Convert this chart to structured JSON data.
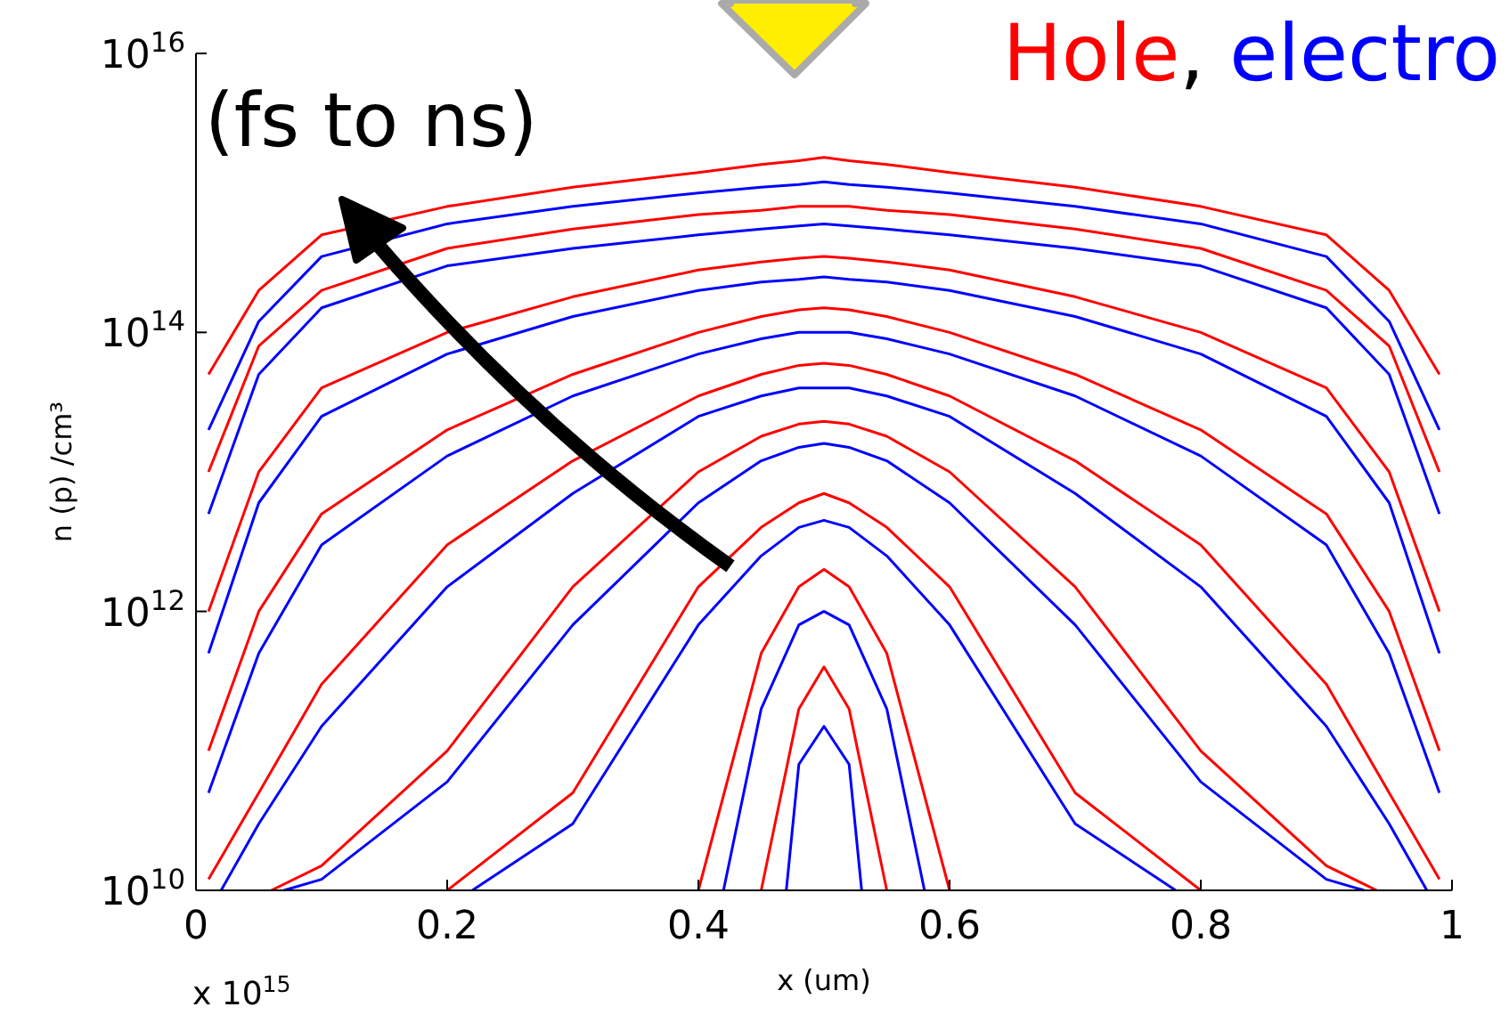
{
  "chart_data": {
    "type": "line",
    "title": "Hole, electro",
    "xlabel": "x (um)",
    "ylabel": "n (p) /cm³",
    "log": "y",
    "line_style": "solid",
    "marker": "none",
    "grid": false,
    "annotations": [
      "(fs to ns)",
      "x 10$^{15}$"
    ],
    "xlim": [
      0,
      1
    ],
    "xticks": [
      0,
      0.2,
      0.4,
      0.6,
      0.8,
      1
    ],
    "ylim": [
      10000000000.0,
      1e+16
    ],
    "yticks": [
      {
        "value": 10000000000.0,
        "label": "10$^{10}$"
      },
      {
        "value": 1000000000000.0,
        "label": "10$^{12}$"
      },
      {
        "value": 100000000000000.0,
        "label": "10$^{14}$"
      },
      {
        "value": 1e+16,
        "label": "10$^{16}$"
      }
    ],
    "series": [
      {
        "color": "#ff0000",
        "x": [
          0.01,
          0.05,
          0.1,
          0.2,
          0.3,
          0.4,
          0.45,
          0.48,
          0.5,
          0.52,
          0.55,
          0.6,
          0.7,
          0.8,
          0.9,
          0.95,
          0.99
        ],
        "values": [
          50000000000000.0,
          200000000000000.0,
          500000000000000.0,
          800000000000000.0,
          1100000000000000.0,
          1400000000000000.0,
          1600000000000000.0,
          1700000000000000.0,
          1800000000000000.0,
          1700000000000000.0,
          1600000000000000.0,
          1400000000000000.0,
          1100000000000000.0,
          800000000000000.0,
          500000000000000.0,
          200000000000000.0,
          50000000000000.0
        ]
      },
      {
        "color": "#0000ff",
        "x": [
          0.01,
          0.05,
          0.1,
          0.2,
          0.3,
          0.4,
          0.45,
          0.48,
          0.5,
          0.52,
          0.55,
          0.6,
          0.7,
          0.8,
          0.9,
          0.95,
          0.99
        ],
        "values": [
          20000000000000.0,
          120000000000000.0,
          350000000000000.0,
          600000000000000.0,
          800000000000000.0,
          1000000000000000.0,
          1100000000000000.0,
          1150000000000000.0,
          1200000000000000.0,
          1150000000000000.0,
          1100000000000000.0,
          1000000000000000.0,
          800000000000000.0,
          600000000000000.0,
          350000000000000.0,
          120000000000000.0,
          20000000000000.0
        ]
      },
      {
        "color": "#ff0000",
        "x": [
          0.01,
          0.05,
          0.1,
          0.2,
          0.3,
          0.4,
          0.45,
          0.48,
          0.5,
          0.52,
          0.55,
          0.6,
          0.7,
          0.8,
          0.9,
          0.95,
          0.99
        ],
        "values": [
          10000000000000.0,
          80000000000000.0,
          200000000000000.0,
          400000000000000.0,
          550000000000000.0,
          700000000000000.0,
          750000000000000.0,
          800000000000000.0,
          800000000000000.0,
          800000000000000.0,
          750000000000000.0,
          700000000000000.0,
          550000000000000.0,
          400000000000000.0,
          200000000000000.0,
          80000000000000.0,
          10000000000000.0
        ]
      },
      {
        "color": "#0000ff",
        "x": [
          0.01,
          0.05,
          0.1,
          0.2,
          0.3,
          0.4,
          0.45,
          0.48,
          0.5,
          0.52,
          0.55,
          0.6,
          0.7,
          0.8,
          0.9,
          0.95,
          0.99
        ],
        "values": [
          5000000000000.0,
          50000000000000.0,
          150000000000000.0,
          300000000000000.0,
          400000000000000.0,
          500000000000000.0,
          550000000000000.0,
          580000000000000.0,
          600000000000000.0,
          580000000000000.0,
          550000000000000.0,
          500000000000000.0,
          400000000000000.0,
          300000000000000.0,
          150000000000000.0,
          50000000000000.0,
          5000000000000.0
        ]
      },
      {
        "color": "#ff0000",
        "x": [
          0.01,
          0.05,
          0.1,
          0.2,
          0.3,
          0.4,
          0.45,
          0.48,
          0.5,
          0.52,
          0.55,
          0.6,
          0.7,
          0.8,
          0.9,
          0.95,
          0.99
        ],
        "values": [
          1000000000000.0,
          10000000000000.0,
          40000000000000.0,
          100000000000000.0,
          180000000000000.0,
          280000000000000.0,
          320000000000000.0,
          340000000000000.0,
          350000000000000.0,
          340000000000000.0,
          320000000000000.0,
          280000000000000.0,
          180000000000000.0,
          100000000000000.0,
          40000000000000.0,
          10000000000000.0,
          1000000000000.0
        ]
      },
      {
        "color": "#0000ff",
        "x": [
          0.01,
          0.05,
          0.1,
          0.2,
          0.3,
          0.4,
          0.45,
          0.48,
          0.5,
          0.52,
          0.55,
          0.6,
          0.7,
          0.8,
          0.9,
          0.95,
          0.99
        ],
        "values": [
          500000000000.0,
          6000000000000.0,
          25000000000000.0,
          70000000000000.0,
          130000000000000.0,
          200000000000000.0,
          230000000000000.0,
          240000000000000.0,
          250000000000000.0,
          240000000000000.0,
          230000000000000.0,
          200000000000000.0,
          130000000000000.0,
          70000000000000.0,
          25000000000000.0,
          6000000000000.0,
          500000000000.0
        ]
      },
      {
        "color": "#ff0000",
        "x": [
          0.01,
          0.05,
          0.1,
          0.2,
          0.3,
          0.4,
          0.45,
          0.48,
          0.5,
          0.52,
          0.55,
          0.6,
          0.7,
          0.8,
          0.9,
          0.95,
          0.99
        ],
        "values": [
          100000000000.0,
          1000000000000.0,
          5000000000000.0,
          20000000000000.0,
          50000000000000.0,
          100000000000000.0,
          130000000000000.0,
          145000000000000.0,
          150000000000000.0,
          145000000000000.0,
          130000000000000.0,
          100000000000000.0,
          50000000000000.0,
          20000000000000.0,
          5000000000000.0,
          1000000000000.0,
          100000000000.0
        ]
      },
      {
        "color": "#0000ff",
        "x": [
          0.01,
          0.05,
          0.1,
          0.2,
          0.3,
          0.4,
          0.45,
          0.48,
          0.5,
          0.52,
          0.55,
          0.6,
          0.7,
          0.8,
          0.9,
          0.95,
          0.99
        ],
        "values": [
          50000000000.0,
          500000000000.0,
          3000000000000.0,
          13000000000000.0,
          35000000000000.0,
          70000000000000.0,
          90000000000000.0,
          100000000000000.0,
          100000000000000.0,
          100000000000000.0,
          90000000000000.0,
          70000000000000.0,
          35000000000000.0,
          13000000000000.0,
          3000000000000.0,
          500000000000.0,
          50000000000.0
        ]
      },
      {
        "color": "#ff0000",
        "x": [
          0.01,
          0.05,
          0.1,
          0.2,
          0.3,
          0.4,
          0.45,
          0.48,
          0.5,
          0.52,
          0.55,
          0.6,
          0.7,
          0.8,
          0.9,
          0.95,
          0.99
        ],
        "values": [
          12000000000.0,
          50000000000.0,
          300000000000.0,
          3000000000000.0,
          12000000000000.0,
          35000000000000.0,
          50000000000000.0,
          58000000000000.0,
          60000000000000.0,
          58000000000000.0,
          50000000000000.0,
          35000000000000.0,
          12000000000000.0,
          3000000000000.0,
          300000000000.0,
          50000000000.0,
          12000000000.0
        ]
      },
      {
        "color": "#0000ff",
        "x": [
          0.02,
          0.05,
          0.1,
          0.2,
          0.3,
          0.4,
          0.45,
          0.48,
          0.5,
          0.52,
          0.55,
          0.6,
          0.7,
          0.8,
          0.9,
          0.95,
          0.98
        ],
        "values": [
          10000000000.0,
          30000000000.0,
          150000000000.0,
          1500000000000.0,
          7000000000000.0,
          25000000000000.0,
          35000000000000.0,
          40000000000000.0,
          40000000000000.0,
          40000000000000.0,
          35000000000000.0,
          25000000000000.0,
          7000000000000.0,
          1500000000000.0,
          150000000000.0,
          30000000000.0,
          10000000000.0
        ]
      },
      {
        "color": "#ff0000",
        "x": [
          0.06,
          0.1,
          0.2,
          0.3,
          0.4,
          0.45,
          0.48,
          0.5,
          0.52,
          0.55,
          0.6,
          0.7,
          0.8,
          0.9,
          0.94
        ],
        "values": [
          10000000000.0,
          15000000000.0,
          100000000000.0,
          1500000000000.0,
          10000000000000.0,
          18000000000000.0,
          22000000000000.0,
          23000000000000.0,
          22000000000000.0,
          18000000000000.0,
          10000000000000.0,
          1500000000000.0,
          100000000000.0,
          15000000000.0,
          10000000000.0
        ]
      },
      {
        "color": "#0000ff",
        "x": [
          0.07,
          0.1,
          0.2,
          0.3,
          0.4,
          0.45,
          0.48,
          0.5,
          0.52,
          0.55,
          0.6,
          0.7,
          0.8,
          0.9,
          0.93
        ],
        "values": [
          10000000000.0,
          12000000000.0,
          60000000000.0,
          800000000000.0,
          6000000000000.0,
          12000000000000.0,
          15000000000000.0,
          16000000000000.0,
          15000000000000.0,
          12000000000000.0,
          6000000000000.0,
          800000000000.0,
          60000000000.0,
          12000000000.0,
          10000000000.0
        ]
      },
      {
        "color": "#ff0000",
        "x": [
          0.2,
          0.3,
          0.4,
          0.45,
          0.48,
          0.5,
          0.52,
          0.55,
          0.6,
          0.7,
          0.8
        ],
        "values": [
          10000000000.0,
          50000000000.0,
          1500000000000.0,
          4000000000000.0,
          6000000000000.0,
          7000000000000.0,
          6000000000000.0,
          4000000000000.0,
          1500000000000.0,
          50000000000.0,
          10000000000.0
        ]
      },
      {
        "color": "#0000ff",
        "x": [
          0.22,
          0.3,
          0.4,
          0.45,
          0.48,
          0.5,
          0.52,
          0.55,
          0.6,
          0.7,
          0.78
        ],
        "values": [
          10000000000.0,
          30000000000.0,
          800000000000.0,
          2500000000000.0,
          4000000000000.0,
          4500000000000.0,
          4000000000000.0,
          2500000000000.0,
          800000000000.0,
          30000000000.0,
          10000000000.0
        ]
      },
      {
        "color": "#ff0000",
        "x": [
          0.4,
          0.45,
          0.48,
          0.5,
          0.52,
          0.55,
          0.6
        ],
        "values": [
          10000000000.0,
          500000000000.0,
          1500000000000.0,
          2000000000000.0,
          1500000000000.0,
          500000000000.0,
          10000000000.0
        ]
      },
      {
        "color": "#0000ff",
        "x": [
          0.42,
          0.45,
          0.48,
          0.5,
          0.52,
          0.55,
          0.58
        ],
        "values": [
          10000000000.0,
          200000000000.0,
          800000000000.0,
          1000000000000.0,
          800000000000.0,
          200000000000.0,
          10000000000.0
        ]
      },
      {
        "color": "#ff0000",
        "x": [
          0.45,
          0.48,
          0.5,
          0.52,
          0.55
        ],
        "values": [
          10000000000.0,
          200000000000.0,
          400000000000.0,
          200000000000.0,
          10000000000.0
        ]
      },
      {
        "color": "#0000ff",
        "x": [
          0.47,
          0.48,
          0.5,
          0.52,
          0.53
        ],
        "values": [
          10000000000.0,
          80000000000.0,
          150000000000.0,
          80000000000.0,
          10000000000.0
        ]
      }
    ]
  }
}
